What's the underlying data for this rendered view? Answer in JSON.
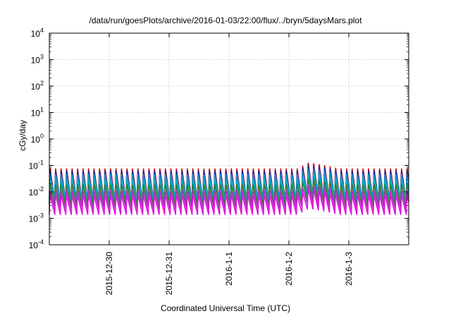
{
  "chart_data": {
    "type": "line",
    "title": "/data/run/goesPlots/archive/2016-01-03/22:00/flux/../bryn/5daysMars.plot",
    "xlabel": "Coordinated Universal Time (UTC)",
    "ylabel": "cGy/day",
    "yscale": "log",
    "ylim": [
      0.0001,
      10000
    ],
    "y_ticks": [
      {
        "exp": "-4",
        "value": 0.0001
      },
      {
        "exp": "-3",
        "value": 0.001
      },
      {
        "exp": "-2",
        "value": 0.01
      },
      {
        "exp": "-1",
        "value": 0.1
      },
      {
        "exp": "0",
        "value": 1
      },
      {
        "exp": "1",
        "value": 10
      },
      {
        "exp": "2",
        "value": 100
      },
      {
        "exp": "3",
        "value": 1000
      },
      {
        "exp": "4",
        "value": 10000
      }
    ],
    "xlim": [
      "2015-12-29T00:00",
      "2016-01-04T00:00"
    ],
    "x_ticks": [
      {
        "label": "2015-12-30",
        "value": "2015-12-30T00:00"
      },
      {
        "label": "2015-12-31",
        "value": "2015-12-31T00:00"
      },
      {
        "label": "2016-1-1",
        "value": "2016-01-01T00:00"
      },
      {
        "label": "2016-1-2",
        "value": "2016-01-02T00:00"
      },
      {
        "label": "2016-1-3",
        "value": "2016-01-03T00:00"
      }
    ],
    "grid": true,
    "cycle_hours": 2.2,
    "series": [
      {
        "color": "#cc0000",
        "peak": 0.085,
        "trough": 0.0045
      },
      {
        "color": "#1a2aa8",
        "peak": 0.07,
        "trough": 0.0035
      },
      {
        "color": "#1e90d0",
        "peak": 0.05,
        "trough": 0.005
      },
      {
        "color": "#00b0b8",
        "peak": 0.03,
        "trough": 0.004
      },
      {
        "color": "#2f7f2f",
        "peak": 0.02,
        "trough": 0.003
      },
      {
        "color": "#b030c0",
        "peak": 0.012,
        "trough": 0.0022
      },
      {
        "color": "#e010e0",
        "peak": 0.008,
        "trough": 0.0014
      }
    ]
  }
}
